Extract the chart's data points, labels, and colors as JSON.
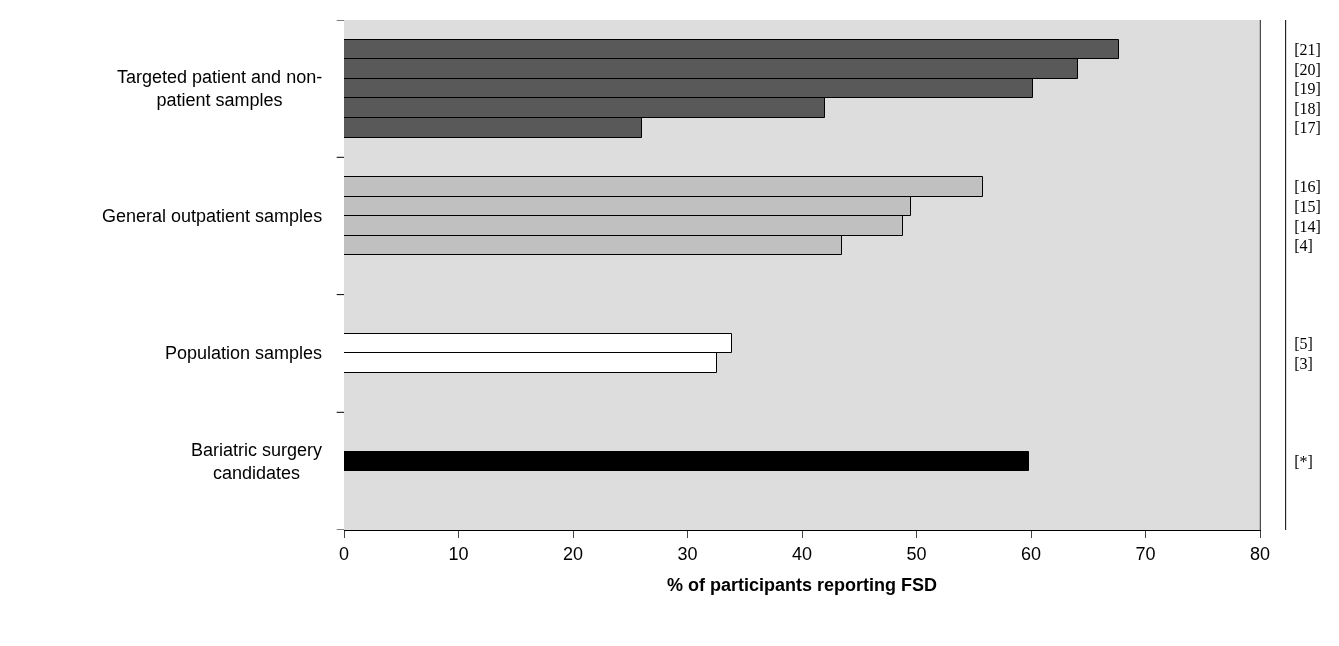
{
  "chart_data": {
    "type": "bar",
    "orientation": "horizontal",
    "xlabel": "% of participants reporting FSD",
    "categories": [
      null,
      "[21]",
      "[20]",
      "[19]",
      "[18]",
      "[17]",
      null,
      null,
      "[16]",
      "[15]",
      "[14]",
      "[4]",
      null,
      null,
      null,
      null,
      "[5]",
      "[3]",
      null,
      null,
      null,
      null,
      "[*]",
      null,
      null,
      null
    ],
    "values": [
      null,
      67.7,
      64.1,
      60.2,
      42.0,
      26.0,
      null,
      null,
      55.8,
      49.5,
      48.8,
      43.5,
      null,
      null,
      null,
      null,
      33.9,
      32.6,
      null,
      null,
      null,
      null,
      59.8,
      null,
      null,
      null
    ],
    "colors": [
      null,
      "#595959",
      "#595959",
      "#595959",
      "#595959",
      "#595959",
      null,
      null,
      "#c0c0c0",
      "#c0c0c0",
      "#c0c0c0",
      "#c0c0c0",
      null,
      null,
      null,
      null,
      "#ffffff",
      "#ffffff",
      null,
      null,
      null,
      null,
      "#000000",
      null,
      null,
      null
    ],
    "annotations": [
      "Targeted patient and non-patient samples",
      "General outpatient samples",
      "Population samples",
      "Bariatric surgery candidates"
    ],
    "xlim": [
      0,
      80
    ],
    "xticks": [
      0,
      10,
      20,
      30,
      40,
      50,
      60,
      70,
      80
    ]
  }
}
